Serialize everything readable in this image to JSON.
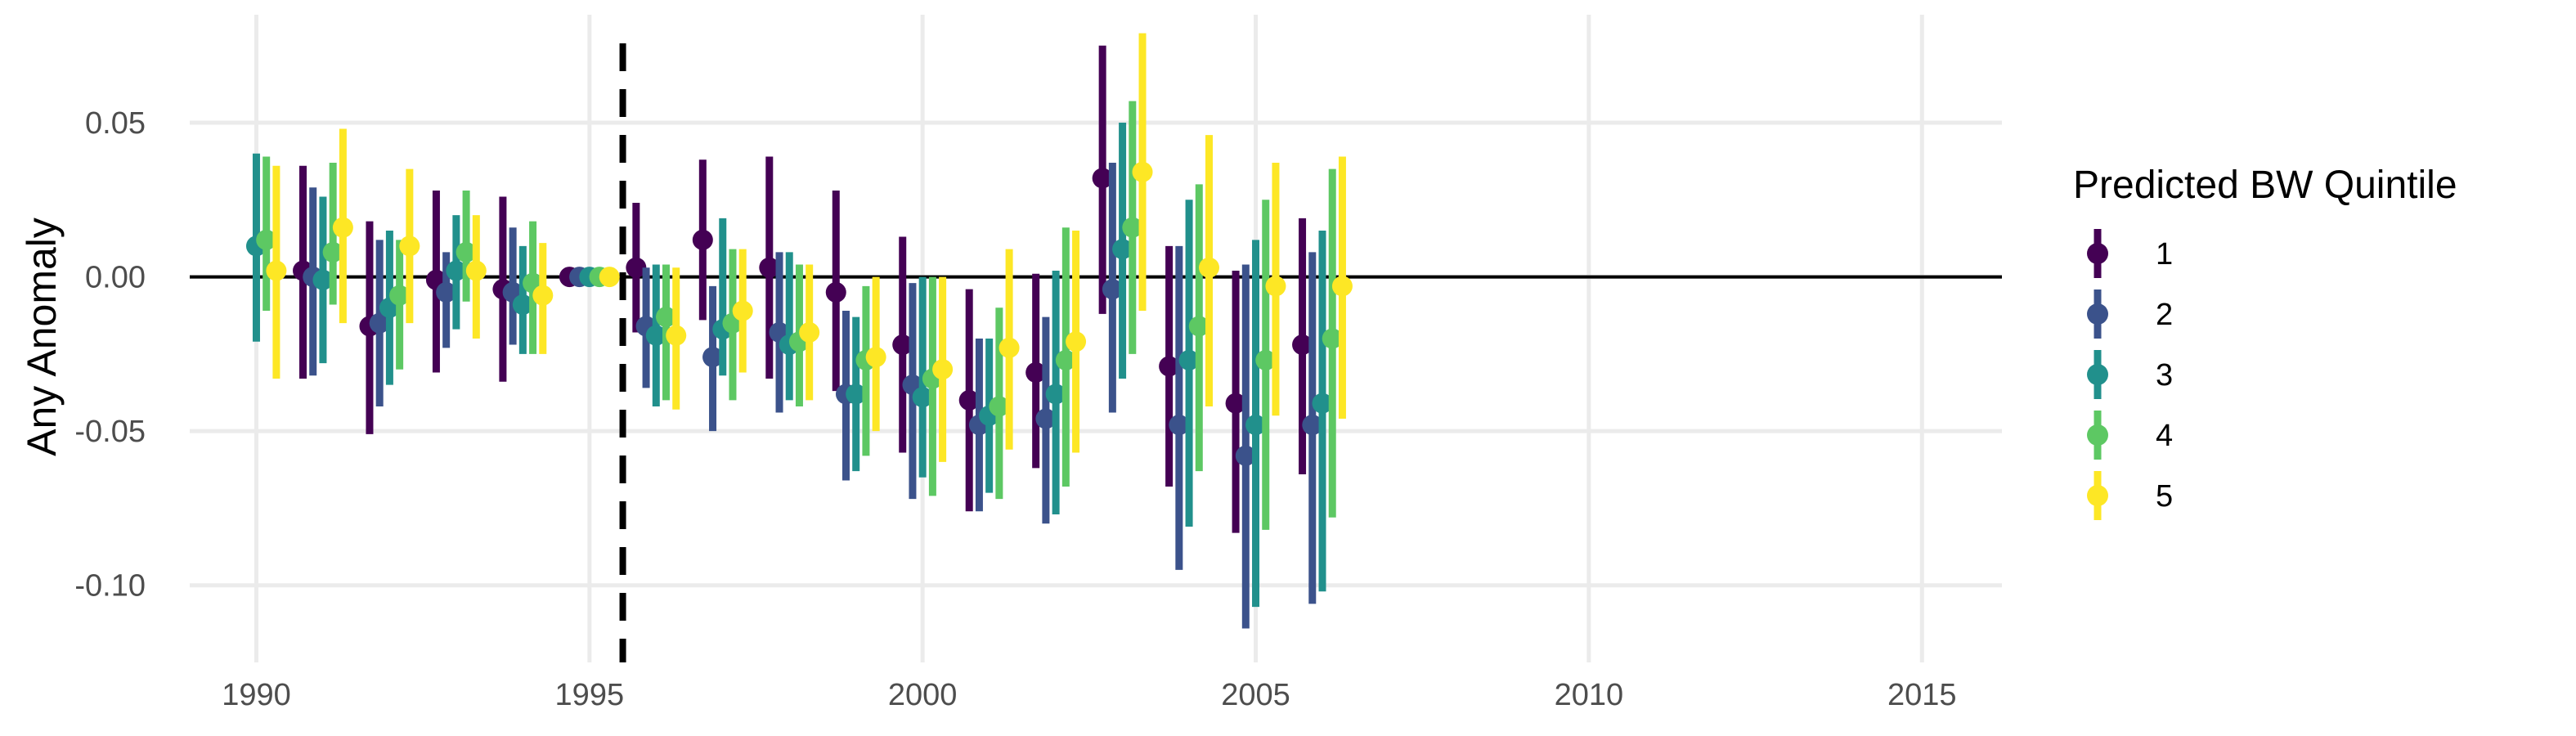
{
  "chart_data": {
    "type": "scatter",
    "subtype": "point-range (coefficient estimates with confidence intervals)",
    "title": "",
    "xlabel": "",
    "ylabel": "Any Anomaly",
    "xlim": [
      1989.0,
      2016.2
    ],
    "ylim": [
      -0.125,
      0.085
    ],
    "x_ticks": [
      1990,
      1995,
      2000,
      2005,
      2010,
      2015
    ],
    "y_ticks": [
      0.05,
      0.0,
      -0.05,
      -0.1
    ],
    "y_tick_labels": [
      "0.05",
      "0.00",
      "-0.05",
      "-0.10"
    ],
    "x_tick_labels": [
      "1990",
      "1995",
      "2000",
      "2005",
      "2010",
      "2015"
    ],
    "grid": true,
    "reference_line": {
      "y": 0,
      "style": "solid",
      "color": "#000000"
    },
    "vline": {
      "x": 1995.5,
      "style": "dashed",
      "color": "#000000"
    },
    "legend": {
      "title": "Predicted BW Quintile",
      "position": "right"
    },
    "years": [
      1990,
      1991,
      1992,
      1993,
      1994,
      1995,
      1996,
      1997,
      1998,
      1999,
      2000,
      2001,
      2002,
      2003,
      2004,
      2005,
      2006
    ],
    "dodge_offsets": [
      -0.3,
      -0.15,
      0.0,
      0.15,
      0.3
    ],
    "series": [
      {
        "name": "1",
        "color": "#440154",
        "estimates": [
          null,
          0.002,
          -0.016,
          -0.001,
          -0.004,
          0.0,
          0.003,
          0.012,
          0.003,
          -0.005,
          -0.022,
          -0.04,
          -0.031,
          0.032,
          -0.029,
          -0.041,
          -0.022
        ],
        "lower": [
          null,
          -0.033,
          -0.051,
          -0.031,
          -0.034,
          0.0,
          -0.018,
          -0.014,
          -0.033,
          -0.037,
          -0.057,
          -0.076,
          -0.062,
          -0.012,
          -0.068,
          -0.083,
          -0.064
        ],
        "upper": [
          null,
          0.036,
          0.018,
          0.028,
          0.026,
          0.0,
          0.024,
          0.038,
          0.039,
          0.028,
          0.013,
          -0.004,
          0.001,
          0.075,
          0.01,
          0.002,
          0.019
        ]
      },
      {
        "name": "2",
        "color": "#3b528b",
        "estimates": [
          null,
          0.0,
          -0.015,
          -0.005,
          -0.005,
          0.0,
          -0.016,
          -0.026,
          -0.018,
          -0.038,
          -0.035,
          -0.048,
          -0.046,
          -0.004,
          -0.048,
          -0.058,
          -0.048
        ],
        "lower": [
          null,
          -0.032,
          -0.042,
          -0.023,
          -0.022,
          0.0,
          -0.036,
          -0.05,
          -0.044,
          -0.066,
          -0.072,
          -0.076,
          -0.08,
          -0.044,
          -0.095,
          -0.114,
          -0.106
        ],
        "upper": [
          null,
          0.029,
          0.012,
          0.008,
          0.016,
          0.0,
          0.003,
          -0.003,
          0.008,
          -0.011,
          -0.002,
          -0.02,
          -0.013,
          0.037,
          0.01,
          0.004,
          0.008
        ]
      },
      {
        "name": "3",
        "color": "#21908c",
        "estimates": [
          0.01,
          -0.001,
          -0.01,
          0.002,
          -0.009,
          0.0,
          -0.019,
          -0.017,
          -0.022,
          -0.038,
          -0.039,
          -0.045,
          -0.038,
          0.009,
          -0.027,
          -0.048,
          -0.041
        ],
        "lower": [
          -0.021,
          -0.028,
          -0.035,
          -0.017,
          -0.025,
          0.0,
          -0.042,
          -0.032,
          -0.04,
          -0.063,
          -0.065,
          -0.07,
          -0.077,
          -0.033,
          -0.081,
          -0.107,
          -0.102
        ],
        "upper": [
          0.04,
          0.026,
          0.015,
          0.02,
          0.01,
          0.0,
          0.004,
          0.019,
          0.008,
          -0.013,
          0.0,
          -0.02,
          0.002,
          0.05,
          0.025,
          0.012,
          0.015
        ]
      },
      {
        "name": "4",
        "color": "#5dc863",
        "estimates": [
          0.012,
          0.008,
          -0.006,
          0.008,
          -0.002,
          0.0,
          -0.013,
          -0.015,
          -0.021,
          -0.027,
          -0.033,
          -0.042,
          -0.027,
          0.016,
          -0.016,
          -0.027,
          -0.02
        ],
        "lower": [
          -0.011,
          -0.009,
          -0.03,
          -0.008,
          -0.025,
          0.0,
          -0.04,
          -0.04,
          -0.042,
          -0.058,
          -0.071,
          -0.072,
          -0.068,
          -0.025,
          -0.063,
          -0.082,
          -0.078
        ],
        "upper": [
          0.039,
          0.037,
          0.012,
          0.028,
          0.018,
          0.0,
          0.004,
          0.009,
          0.004,
          -0.003,
          0.0,
          -0.01,
          0.016,
          0.057,
          0.03,
          0.025,
          0.035
        ]
      },
      {
        "name": "5",
        "color": "#fde725",
        "estimates": [
          0.002,
          0.016,
          0.01,
          0.002,
          -0.006,
          0.0,
          -0.019,
          -0.011,
          -0.018,
          -0.026,
          -0.03,
          -0.023,
          -0.021,
          0.034,
          0.003,
          -0.003,
          -0.003
        ],
        "lower": [
          -0.033,
          -0.015,
          -0.015,
          -0.02,
          -0.025,
          0.0,
          -0.043,
          -0.031,
          -0.04,
          -0.05,
          -0.06,
          -0.056,
          -0.057,
          -0.011,
          -0.042,
          -0.045,
          -0.046
        ],
        "upper": [
          0.036,
          0.048,
          0.035,
          0.02,
          0.011,
          0.0,
          0.003,
          0.009,
          0.004,
          0.0,
          0.0,
          0.009,
          0.015,
          0.079,
          0.046,
          0.037,
          0.039
        ]
      }
    ]
  }
}
